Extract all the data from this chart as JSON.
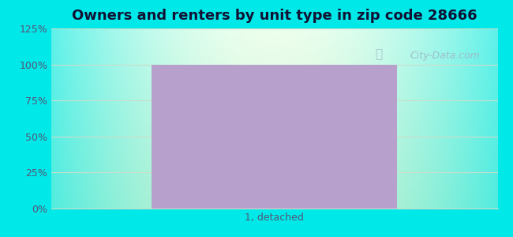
{
  "title": "Owners and renters by unit type in zip code 28666",
  "categories": [
    "1, detached"
  ],
  "values": [
    100
  ],
  "bar_color": "#b8a0cc",
  "ylim": [
    0,
    125
  ],
  "yticks": [
    0,
    25,
    50,
    75,
    100,
    125
  ],
  "ytick_labels": [
    "0%",
    "25%",
    "50%",
    "75%",
    "100%",
    "125%"
  ],
  "outer_bg_color": "#00e8e8",
  "title_fontsize": 13,
  "title_color": "#111133",
  "tick_color": "#555577",
  "bar_width": 0.55,
  "watermark_text": "City-Data.com",
  "grid_color": "#ccddcc",
  "xlim": [
    -0.5,
    0.5
  ]
}
